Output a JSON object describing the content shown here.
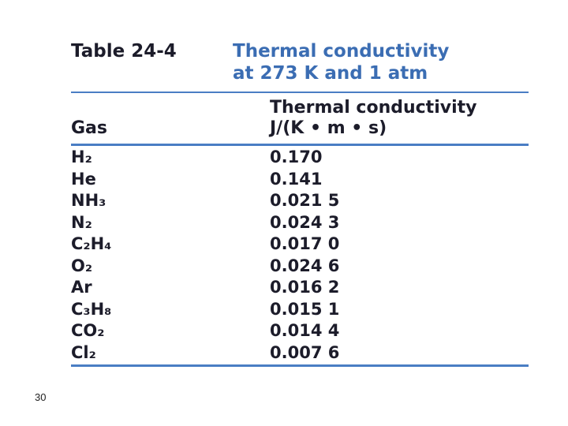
{
  "header": {
    "label": "Table 24-4",
    "title_lines": [
      "Thermal conductivity",
      "at 273 K and 1 atm"
    ]
  },
  "table": {
    "columns": [
      [
        "Gas"
      ],
      [
        "Thermal conductivity",
        "J/(K • m • s)"
      ]
    ],
    "rows": [
      [
        "H₂",
        "0.170"
      ],
      [
        "He",
        "0.141"
      ],
      [
        "NH₃",
        "0.021 5"
      ],
      [
        "N₂",
        "0.024 3"
      ],
      [
        "C₂H₄",
        "0.017 0"
      ],
      [
        "O₂",
        "0.024 6"
      ],
      [
        "Ar",
        "0.016 2"
      ],
      [
        "C₃H₈",
        "0.015 1"
      ],
      [
        "CO₂",
        "0.014 4"
      ],
      [
        "Cl₂",
        "0.007 6"
      ]
    ]
  },
  "page_number": "30"
}
